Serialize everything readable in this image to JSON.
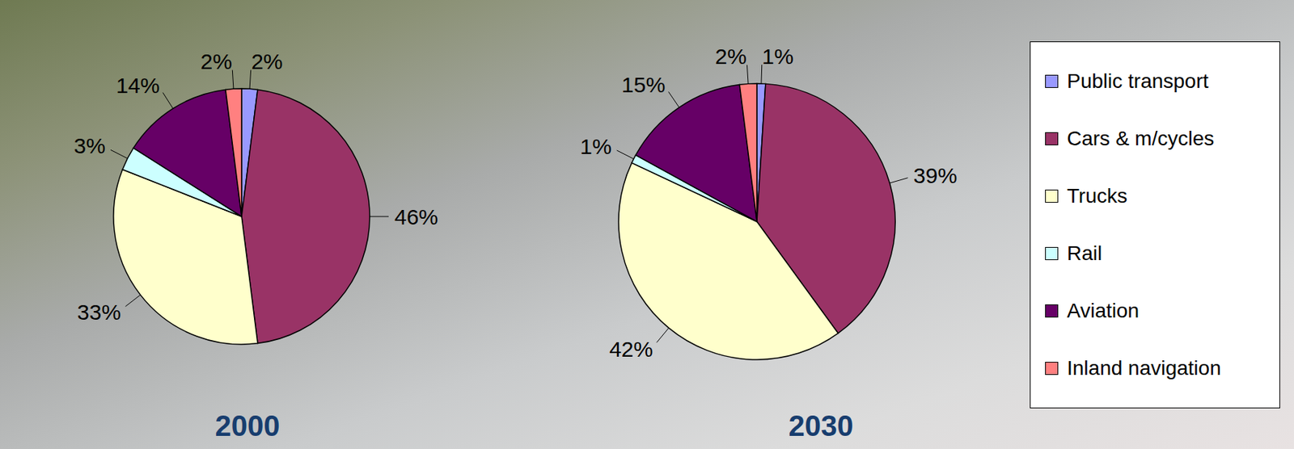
{
  "chart_data": [
    {
      "type": "pie",
      "title": "2000",
      "categories": [
        "Public transport",
        "Cars & m/cycles",
        "Trucks",
        "Rail",
        "Aviation",
        "Inland navigation"
      ],
      "values": [
        2,
        46,
        33,
        3,
        14,
        2
      ],
      "value_labels": [
        "2%",
        "46%",
        "33%",
        "3%",
        "14%",
        "2%"
      ],
      "colors": [
        "#9999ff",
        "#993366",
        "#ffffcc",
        "#ccffff",
        "#660066",
        "#ff8080"
      ],
      "data_labels": true
    },
    {
      "type": "pie",
      "title": "2030",
      "categories": [
        "Public transport",
        "Cars & m/cycles",
        "Trucks",
        "Rail",
        "Aviation",
        "Inland navigation"
      ],
      "values": [
        1,
        39,
        42,
        1,
        15,
        2
      ],
      "value_labels": [
        "1%",
        "39%",
        "42%",
        "1%",
        "15%",
        "2%"
      ],
      "colors": [
        "#9999ff",
        "#993366",
        "#ffffcc",
        "#ccffff",
        "#660066",
        "#ff8080"
      ],
      "data_labels": true,
      "legend": "right"
    }
  ]
}
